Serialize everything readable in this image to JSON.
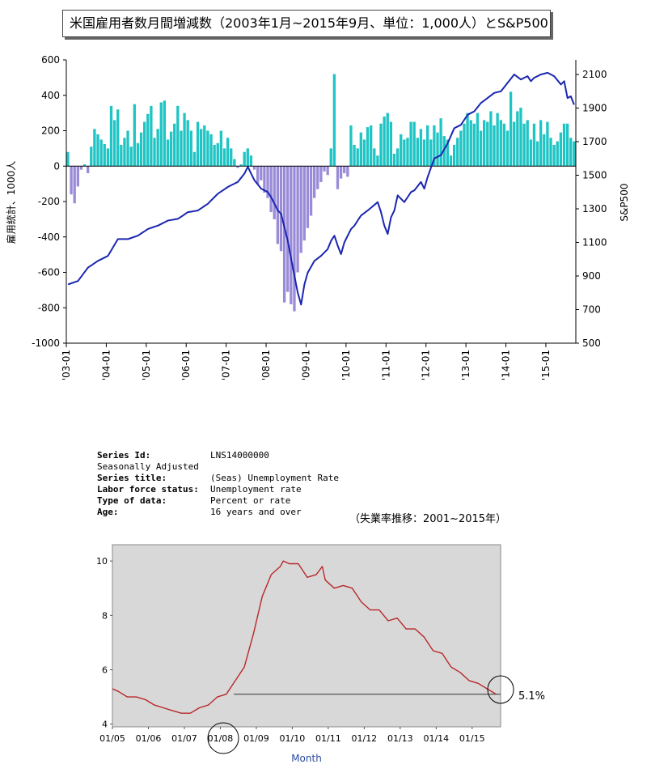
{
  "chart_data": [
    {
      "type": "bar+line",
      "title": "米国雇用者数月間増減数（2003年1月~2015年9月、単位：1,000人）とS&P500",
      "ylabel": "雇用統計、1000人",
      "y2label": "S&P500",
      "ylim": [
        -1000,
        600
      ],
      "y2lim": [
        500,
        2200
      ],
      "yticks": [
        "600",
        "400",
        "200",
        "0",
        "-200",
        "-400",
        "-600",
        "-800",
        "-1000"
      ],
      "y2ticks": [
        "2100",
        "1900",
        "1700",
        "1500",
        "1300",
        "1100",
        "900",
        "700",
        "500"
      ],
      "xticks": [
        "'03-01",
        "'04-01",
        "'05-01",
        "'06-01",
        "'07-01",
        "'08-01",
        "'09-01",
        "'10-01",
        "'11-01",
        "'12-01",
        "'13-01",
        "'14-01",
        "'15-01"
      ],
      "payroll_anchors": [
        [
          0,
          80
        ],
        [
          1,
          -160
        ],
        [
          2,
          -210
        ],
        [
          4,
          -20
        ],
        [
          5,
          10
        ],
        [
          6,
          -40
        ],
        [
          7,
          110
        ],
        [
          8,
          210
        ],
        [
          10,
          150
        ],
        [
          12,
          100
        ],
        [
          13,
          340
        ],
        [
          14,
          260
        ],
        [
          15,
          320
        ],
        [
          16,
          120
        ],
        [
          18,
          200
        ],
        [
          19,
          110
        ],
        [
          20,
          350
        ],
        [
          21,
          130
        ],
        [
          23,
          250
        ],
        [
          25,
          340
        ],
        [
          26,
          160
        ],
        [
          27,
          210
        ],
        [
          28,
          360
        ],
        [
          29,
          370
        ],
        [
          30,
          150
        ],
        [
          32,
          240
        ],
        [
          33,
          340
        ],
        [
          34,
          200
        ],
        [
          35,
          300
        ],
        [
          36,
          260
        ],
        [
          37,
          200
        ],
        [
          38,
          80
        ],
        [
          39,
          250
        ],
        [
          40,
          210
        ],
        [
          41,
          230
        ],
        [
          42,
          200
        ],
        [
          43,
          180
        ],
        [
          44,
          120
        ],
        [
          45,
          130
        ],
        [
          46,
          200
        ],
        [
          47,
          100
        ],
        [
          48,
          160
        ],
        [
          49,
          100
        ],
        [
          50,
          40
        ],
        [
          51,
          -10
        ],
        [
          52,
          10
        ],
        [
          53,
          80
        ],
        [
          54,
          100
        ],
        [
          55,
          60
        ],
        [
          56,
          -20
        ],
        [
          57,
          -100
        ],
        [
          58,
          -80
        ],
        [
          59,
          -150
        ],
        [
          60,
          -180
        ],
        [
          61,
          -260
        ],
        [
          62,
          -300
        ],
        [
          63,
          -440
        ],
        [
          64,
          -480
        ],
        [
          65,
          -770
        ],
        [
          66,
          -710
        ],
        [
          67,
          -780
        ],
        [
          68,
          -820
        ],
        [
          69,
          -600
        ],
        [
          70,
          -490
        ],
        [
          71,
          -420
        ],
        [
          72,
          -350
        ],
        [
          73,
          -280
        ],
        [
          74,
          -180
        ],
        [
          75,
          -130
        ],
        [
          76,
          -90
        ],
        [
          77,
          -30
        ],
        [
          78,
          -50
        ],
        [
          79,
          100
        ],
        [
          80,
          520
        ],
        [
          81,
          -130
        ],
        [
          82,
          -70
        ],
        [
          83,
          -40
        ],
        [
          84,
          -60
        ],
        [
          85,
          230
        ],
        [
          86,
          120
        ],
        [
          87,
          100
        ],
        [
          88,
          190
        ],
        [
          89,
          150
        ],
        [
          90,
          220
        ],
        [
          91,
          230
        ],
        [
          92,
          100
        ],
        [
          93,
          60
        ],
        [
          94,
          240
        ],
        [
          95,
          280
        ],
        [
          96,
          300
        ],
        [
          97,
          250
        ],
        [
          98,
          70
        ],
        [
          99,
          100
        ],
        [
          100,
          180
        ],
        [
          101,
          150
        ],
        [
          102,
          160
        ],
        [
          103,
          250
        ],
        [
          104,
          250
        ],
        [
          105,
          160
        ],
        [
          106,
          210
        ],
        [
          107,
          150
        ],
        [
          108,
          230
        ],
        [
          109,
          150
        ],
        [
          110,
          230
        ],
        [
          111,
          190
        ],
        [
          112,
          270
        ],
        [
          113,
          170
        ],
        [
          114,
          150
        ],
        [
          115,
          60
        ],
        [
          116,
          120
        ],
        [
          117,
          160
        ],
        [
          118,
          200
        ],
        [
          119,
          240
        ],
        [
          120,
          300
        ],
        [
          121,
          260
        ],
        [
          122,
          240
        ],
        [
          123,
          300
        ],
        [
          124,
          200
        ],
        [
          125,
          260
        ],
        [
          126,
          250
        ],
        [
          127,
          310
        ],
        [
          128,
          230
        ],
        [
          129,
          300
        ],
        [
          130,
          260
        ],
        [
          131,
          240
        ],
        [
          132,
          200
        ],
        [
          133,
          420
        ],
        [
          134,
          250
        ],
        [
          135,
          310
        ],
        [
          136,
          330
        ],
        [
          137,
          240
        ],
        [
          138,
          260
        ],
        [
          139,
          150
        ],
        [
          140,
          240
        ],
        [
          141,
          140
        ],
        [
          142,
          260
        ],
        [
          143,
          180
        ],
        [
          144,
          250
        ],
        [
          145,
          160
        ],
        [
          146,
          120
        ],
        [
          147,
          140
        ],
        [
          148,
          190
        ],
        [
          149,
          240
        ],
        [
          150,
          240
        ],
        [
          151,
          160
        ],
        [
          152,
          140
        ]
      ],
      "sp500_anchors": [
        [
          0,
          850
        ],
        [
          3,
          870
        ],
        [
          6,
          950
        ],
        [
          9,
          990
        ],
        [
          12,
          1020
        ],
        [
          15,
          1120
        ],
        [
          18,
          1120
        ],
        [
          21,
          1140
        ],
        [
          24,
          1180
        ],
        [
          27,
          1200
        ],
        [
          30,
          1230
        ],
        [
          33,
          1240
        ],
        [
          36,
          1280
        ],
        [
          39,
          1290
        ],
        [
          42,
          1330
        ],
        [
          45,
          1390
        ],
        [
          48,
          1430
        ],
        [
          51,
          1460
        ],
        [
          53,
          1510
        ],
        [
          54,
          1550
        ],
        [
          56,
          1470
        ],
        [
          58,
          1420
        ],
        [
          60,
          1400
        ],
        [
          61,
          1370
        ],
        [
          63,
          1290
        ],
        [
          64,
          1270
        ],
        [
          66,
          1110
        ],
        [
          68,
          900
        ],
        [
          69,
          800
        ],
        [
          70,
          730
        ],
        [
          71,
          850
        ],
        [
          72,
          920
        ],
        [
          74,
          990
        ],
        [
          76,
          1020
        ],
        [
          78,
          1060
        ],
        [
          79,
          1110
        ],
        [
          80,
          1140
        ],
        [
          81,
          1080
        ],
        [
          82,
          1030
        ],
        [
          83,
          1100
        ],
        [
          85,
          1180
        ],
        [
          86,
          1200
        ],
        [
          88,
          1260
        ],
        [
          90,
          1290
        ],
        [
          93,
          1340
        ],
        [
          94,
          1280
        ],
        [
          95,
          1200
        ],
        [
          96,
          1150
        ],
        [
          97,
          1250
        ],
        [
          98,
          1290
        ],
        [
          99,
          1380
        ],
        [
          101,
          1340
        ],
        [
          103,
          1400
        ],
        [
          104,
          1410
        ],
        [
          106,
          1460
        ],
        [
          107,
          1420
        ],
        [
          108,
          1490
        ],
        [
          110,
          1600
        ],
        [
          112,
          1620
        ],
        [
          114,
          1690
        ],
        [
          116,
          1780
        ],
        [
          118,
          1800
        ],
        [
          120,
          1860
        ],
        [
          122,
          1880
        ],
        [
          124,
          1930
        ],
        [
          126,
          1960
        ],
        [
          128,
          1990
        ],
        [
          130,
          2000
        ],
        [
          132,
          2050
        ],
        [
          134,
          2100
        ],
        [
          136,
          2070
        ],
        [
          138,
          2090
        ],
        [
          139,
          2060
        ],
        [
          140,
          2080
        ],
        [
          142,
          2100
        ],
        [
          144,
          2110
        ],
        [
          146,
          2090
        ],
        [
          148,
          2040
        ],
        [
          149,
          2060
        ],
        [
          150,
          1960
        ],
        [
          151,
          1970
        ],
        [
          152,
          1920
        ]
      ]
    },
    {
      "type": "line",
      "series_name": "(Seas) Unemployment Rate",
      "ylim": [
        3.9,
        10.6
      ],
      "yticks": [
        "10",
        "8",
        "6",
        "4"
      ],
      "xticks": [
        "01/05",
        "01/06",
        "01/07",
        "01/08",
        "01/09",
        "01/10",
        "01/11",
        "01/12",
        "01/13",
        "01/14",
        "01/15"
      ],
      "xlabel": "Month",
      "points": [
        [
          "2005-01",
          5.3
        ],
        [
          "2005-03",
          5.2
        ],
        [
          "2005-06",
          5.0
        ],
        [
          "2005-09",
          5.0
        ],
        [
          "2005-12",
          4.9
        ],
        [
          "2006-03",
          4.7
        ],
        [
          "2006-06",
          4.6
        ],
        [
          "2006-09",
          4.5
        ],
        [
          "2006-12",
          4.4
        ],
        [
          "2007-03",
          4.4
        ],
        [
          "2007-06",
          4.6
        ],
        [
          "2007-09",
          4.7
        ],
        [
          "2007-12",
          5.0
        ],
        [
          "2008-03",
          5.1
        ],
        [
          "2008-06",
          5.6
        ],
        [
          "2008-09",
          6.1
        ],
        [
          "2008-12",
          7.3
        ],
        [
          "2009-03",
          8.7
        ],
        [
          "2009-06",
          9.5
        ],
        [
          "2009-09",
          9.8
        ],
        [
          "2009-10",
          10.0
        ],
        [
          "2009-12",
          9.9
        ],
        [
          "2010-03",
          9.9
        ],
        [
          "2010-06",
          9.4
        ],
        [
          "2010-09",
          9.5
        ],
        [
          "2010-11",
          9.8
        ],
        [
          "2010-12",
          9.3
        ],
        [
          "2011-03",
          9.0
        ],
        [
          "2011-06",
          9.1
        ],
        [
          "2011-09",
          9.0
        ],
        [
          "2011-12",
          8.5
        ],
        [
          "2012-03",
          8.2
        ],
        [
          "2012-06",
          8.2
        ],
        [
          "2012-09",
          7.8
        ],
        [
          "2012-12",
          7.9
        ],
        [
          "2013-03",
          7.5
        ],
        [
          "2013-06",
          7.5
        ],
        [
          "2013-09",
          7.2
        ],
        [
          "2013-12",
          6.7
        ],
        [
          "2014-03",
          6.6
        ],
        [
          "2014-06",
          6.1
        ],
        [
          "2014-09",
          5.9
        ],
        [
          "2014-12",
          5.6
        ],
        [
          "2015-03",
          5.5
        ],
        [
          "2015-06",
          5.3
        ],
        [
          "2015-09",
          5.1
        ]
      ],
      "reference_line_value": 5.1,
      "end_label": "5.1%",
      "circled_tick": "01/08"
    }
  ],
  "series_info": [
    {
      "key": "Series Id:",
      "value": "LNS14000000"
    },
    {
      "key": "",
      "value": "Seasonally Adjusted"
    },
    {
      "key": "Series title:",
      "value": "(Seas) Unemployment Rate"
    },
    {
      "key": "Labor force status:",
      "value": "Unemployment rate"
    },
    {
      "key": "Type of data:",
      "value": "Percent or rate"
    },
    {
      "key": "Age:",
      "value": "16 years and over"
    }
  ],
  "annotation": "（失業率推移：2001~2015年）",
  "colors": {
    "positive_bar": "#1fc4c4",
    "negative_bar": "#9a8bd8",
    "sp500_line": "#1a26b0",
    "unemployment_line": "#b8282a",
    "plot_bg2": "#d8d8d8"
  }
}
